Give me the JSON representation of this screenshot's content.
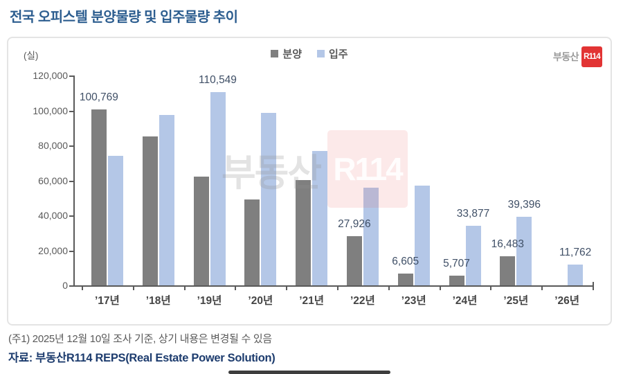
{
  "page": {
    "title": "전국 오피스텔 분양물량 및 입주물량 추이",
    "note": "(주1) 2025년 12월 10일 조사 기준, 상기 내용은 변경될 수 있음",
    "source": "자료: 부동산R114 REPS(Real Estate Power Solution)"
  },
  "panel": {
    "unit_label": "(실)",
    "logo": {
      "prefix": "부동산",
      "box": "R114",
      "box_color": "#e23434"
    },
    "watermark": {
      "prefix": "부동산",
      "box": "R114"
    }
  },
  "chart_data": {
    "type": "bar",
    "title": "전국 오피스텔 분양물량 및 입주물량 추이",
    "unit": "실",
    "categories": [
      "’17년",
      "’18년",
      "’19년",
      "’20년",
      "’21년",
      "’22년",
      "’23년",
      "’24년",
      "’25년",
      "’26년"
    ],
    "series": [
      {
        "name": "분양",
        "color": "#7f7f7f",
        "values": [
          100769,
          85000,
          62000,
          49000,
          60000,
          27926,
          6605,
          5707,
          16483,
          0
        ],
        "labels": [
          "100,769",
          null,
          null,
          null,
          null,
          "27,926",
          "6,605",
          "5,707",
          "16,483",
          null
        ]
      },
      {
        "name": "입주",
        "color": "#b4c7e7",
        "values": [
          74000,
          97500,
          110549,
          98500,
          77000,
          56000,
          57000,
          33877,
          39396,
          11762
        ],
        "labels": [
          null,
          null,
          "110,549",
          null,
          null,
          null,
          null,
          "33,877",
          "39,396",
          "11,762"
        ]
      }
    ],
    "ylim": [
      0,
      120000
    ],
    "ytick_step": 20000,
    "ytick_labels": [
      "0",
      "20,000",
      "40,000",
      "60,000",
      "80,000",
      "100,000",
      "120,000"
    ],
    "legend_position": "top-center",
    "grid": false
  }
}
